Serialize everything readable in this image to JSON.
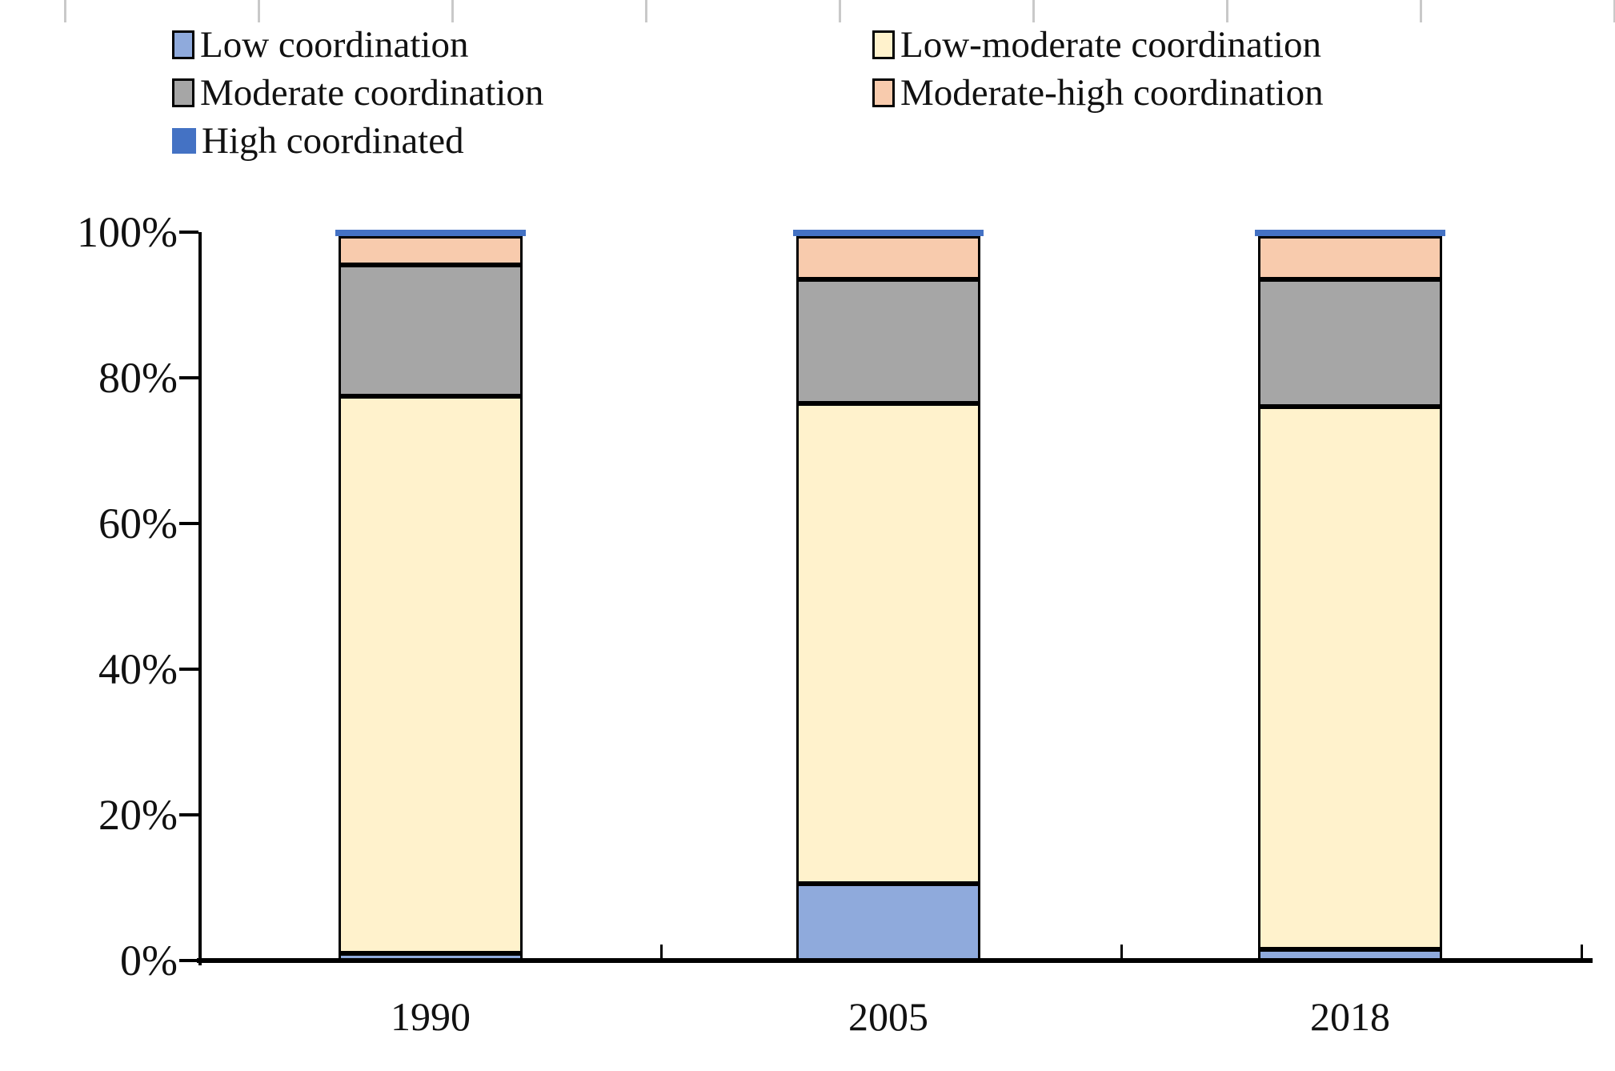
{
  "chart_data": {
    "type": "bar",
    "subtype": "stacked-100-percent-column",
    "title": "",
    "xlabel": "",
    "ylabel": "",
    "categories": [
      "1990",
      "2005",
      "2018"
    ],
    "series": [
      {
        "name": "Low coordination",
        "color": "#8FAADC",
        "border_color": "#000000",
        "values": [
          1.0,
          10.5,
          1.5
        ]
      },
      {
        "name": "Low-moderate coordination",
        "color": "#FFF2CC",
        "border_color": "#000000",
        "values": [
          76.5,
          66.0,
          74.5
        ]
      },
      {
        "name": "Moderate coordination",
        "color": "#A6A6A6",
        "border_color": "#000000",
        "values": [
          18.0,
          17.0,
          17.5
        ]
      },
      {
        "name": "Moderate-high coordination",
        "color": "#F8CBAD",
        "border_color": "#000000",
        "values": [
          4.0,
          6.0,
          6.0
        ]
      },
      {
        "name": "High coordinated",
        "color": "#4472C4",
        "border_color": null,
        "values": [
          0.5,
          0.5,
          0.5
        ]
      }
    ],
    "stack_order_bottom_to_top": [
      "Low coordination",
      "Low-moderate coordination",
      "Moderate coordination",
      "Moderate-high coordination",
      "High coordinated"
    ],
    "ylim": [
      0,
      100
    ],
    "ytick_values": [
      0,
      20,
      40,
      60,
      80,
      100
    ],
    "ytick_labels": [
      "0%",
      "20%",
      "40%",
      "60%",
      "80%",
      "100%"
    ],
    "grid": false,
    "legend_position": "top",
    "legend_columns": 2,
    "axis_color": "#000000",
    "text_color": "#111111"
  }
}
